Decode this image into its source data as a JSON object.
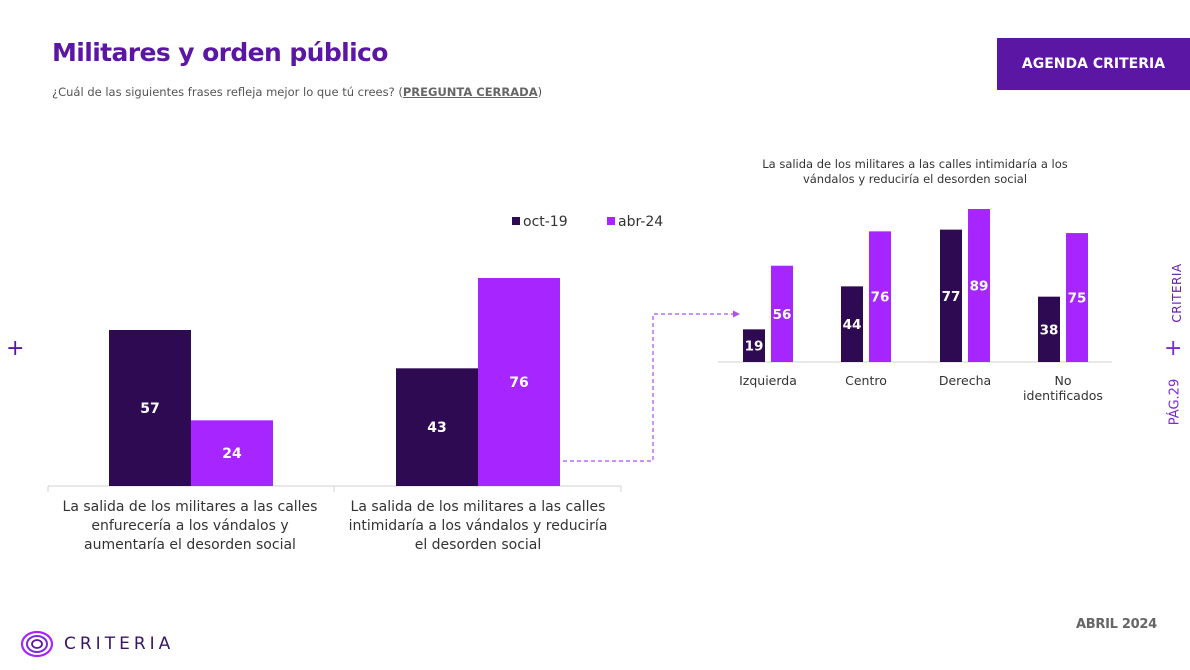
{
  "header": {
    "title": "Militares y orden público",
    "subtitle": "¿Cuál de las siguientes frases refleja mejor lo que tú crees? (",
    "question_type": "PREGUNTA CERRADA",
    "subtitle_end": ")",
    "agenda_label": "AGENDA CRITERIA"
  },
  "side": {
    "brand": "CRITERIA",
    "page": "PÁG.29"
  },
  "footer": {
    "date": "ABRIL 2024",
    "brand": "CRITERIA"
  },
  "colors": {
    "accent": "#5b16a3",
    "dark_bar": "#2d0a52",
    "light_bar": "#a726ff"
  },
  "chart_data": [
    {
      "type": "bar",
      "title": "",
      "categories": [
        [
          "La salida de los militares a las calles",
          "enfurecería a los vándalos y",
          "aumentaría el desorden social"
        ],
        [
          "La salida de los militares a las calles",
          "intimidaría a los vándalos y  reduciría",
          "el desorden social"
        ]
      ],
      "series": [
        {
          "name": "oct-19",
          "color": "#2d0a52",
          "values": [
            57,
            43
          ]
        },
        {
          "name": "abr-24",
          "color": "#a726ff",
          "values": [
            24,
            76
          ]
        }
      ],
      "ylim": [
        0,
        80
      ],
      "legend": "top-right",
      "grid": false
    },
    {
      "type": "bar",
      "title": [
        "La salida de los militares a las calles intimidaría a los",
        "vándalos y reduciría  el desorden social"
      ],
      "categories": [
        [
          "Izquierda"
        ],
        [
          "Centro"
        ],
        [
          "Derecha"
        ],
        [
          "No",
          "identificados"
        ]
      ],
      "series": [
        {
          "name": "oct-19",
          "color": "#2d0a52",
          "values": [
            19,
            44,
            77,
            38
          ]
        },
        {
          "name": "abr-24",
          "color": "#a726ff",
          "values": [
            56,
            76,
            89,
            75
          ]
        }
      ],
      "ylim": [
        0,
        89
      ],
      "grid": false
    }
  ]
}
